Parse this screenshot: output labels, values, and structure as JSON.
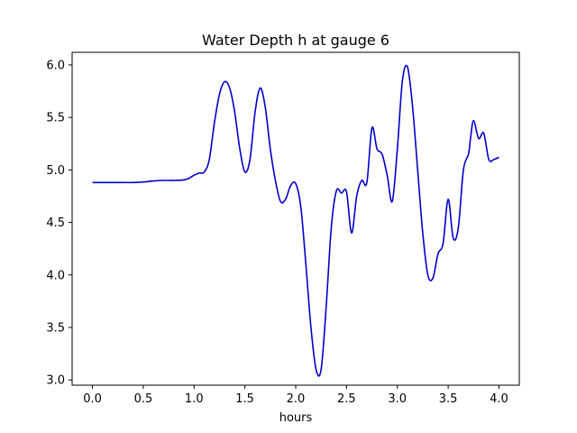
{
  "chart_data": {
    "type": "line",
    "title": "Water Depth h at gauge 6",
    "xlabel": "hours",
    "ylabel": "",
    "xlim": [
      -0.2,
      4.2
    ],
    "ylim": [
      2.95,
      6.12
    ],
    "xticks": [
      0.0,
      0.5,
      1.0,
      1.5,
      2.0,
      2.5,
      3.0,
      3.5,
      4.0
    ],
    "xtick_labels": [
      "0.0",
      "0.5",
      "1.0",
      "1.5",
      "2.0",
      "2.5",
      "3.0",
      "3.5",
      "4.0"
    ],
    "yticks": [
      3.0,
      3.5,
      4.0,
      4.5,
      5.0,
      5.5,
      6.0
    ],
    "ytick_labels": [
      "3.0",
      "3.5",
      "4.0",
      "4.5",
      "5.0",
      "5.5",
      "6.0"
    ],
    "grid": false,
    "color": "#0000cc",
    "series": [
      {
        "x": [
          0.0,
          0.2,
          0.4,
          0.5,
          0.6,
          0.7,
          0.8,
          0.9,
          0.95,
          1.0,
          1.05,
          1.1,
          1.15,
          1.2,
          1.25,
          1.3,
          1.35,
          1.4,
          1.45,
          1.5,
          1.55,
          1.6,
          1.65,
          1.7,
          1.75,
          1.8,
          1.85,
          1.9,
          1.95,
          2.0,
          2.05,
          2.1,
          2.15,
          2.2,
          2.25,
          2.3,
          2.35,
          2.4,
          2.45,
          2.5,
          2.55,
          2.6,
          2.65,
          2.7,
          2.75,
          2.8,
          2.85,
          2.9,
          2.95,
          3.0,
          3.05,
          3.1,
          3.15,
          3.2,
          3.25,
          3.3,
          3.35,
          3.4,
          3.45,
          3.5,
          3.55,
          3.6,
          3.65,
          3.7,
          3.72,
          3.75,
          3.8,
          3.85,
          3.9,
          3.95,
          4.0
        ],
        "values": [
          4.88,
          4.88,
          4.88,
          4.885,
          4.895,
          4.9,
          4.9,
          4.905,
          4.92,
          4.95,
          4.97,
          4.98,
          5.1,
          5.45,
          5.72,
          5.84,
          5.78,
          5.55,
          5.2,
          4.98,
          5.1,
          5.55,
          5.78,
          5.6,
          5.2,
          4.9,
          4.7,
          4.72,
          4.85,
          4.87,
          4.65,
          4.1,
          3.5,
          3.1,
          3.1,
          3.7,
          4.45,
          4.8,
          4.78,
          4.79,
          4.4,
          4.75,
          4.9,
          4.88,
          5.4,
          5.2,
          5.15,
          4.95,
          4.7,
          5.2,
          5.85,
          5.98,
          5.6,
          5.0,
          4.4,
          4.0,
          3.97,
          4.2,
          4.3,
          4.72,
          4.35,
          4.45,
          5.0,
          5.15,
          5.3,
          5.47,
          5.3,
          5.35,
          5.1,
          5.1,
          5.12
        ]
      }
    ]
  }
}
